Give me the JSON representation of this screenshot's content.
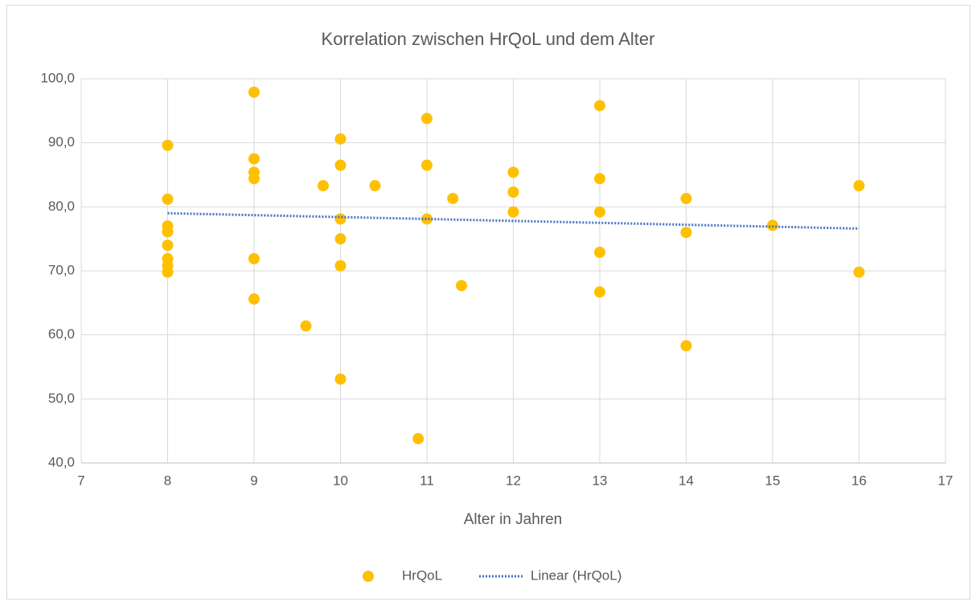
{
  "chart_data": {
    "type": "scatter",
    "title": "Korrelation zwischen HrQoL und dem Alter",
    "xlabel": "Alter in Jahren",
    "xlim": [
      7,
      17
    ],
    "xticks": [
      7,
      8,
      9,
      10,
      11,
      12,
      13,
      14,
      15,
      16,
      17
    ],
    "ylim": [
      40,
      100
    ],
    "yticks": [
      {
        "value": 40,
        "label": "40,0"
      },
      {
        "value": 50,
        "label": "50,0"
      },
      {
        "value": 60,
        "label": "60,0"
      },
      {
        "value": 70,
        "label": "70,0"
      },
      {
        "value": 80,
        "label": "80,0"
      },
      {
        "value": 90,
        "label": "90,0"
      },
      {
        "value": 100,
        "label": "100,0"
      }
    ],
    "grid": true,
    "legend": "bottom",
    "series": [
      {
        "name": "HrQoL",
        "color": "#ffc000",
        "type": "scatter",
        "x": [
          8,
          8,
          8,
          8,
          8,
          8,
          8,
          8,
          9,
          9,
          9,
          9,
          9,
          9,
          9.6,
          9.8,
          10,
          10,
          10,
          10,
          10,
          10,
          10.4,
          10.9,
          11,
          11,
          11,
          11.3,
          11.4,
          12,
          12,
          12,
          13,
          13,
          13,
          13,
          13,
          14,
          14,
          14,
          15,
          16,
          16
        ],
        "values": [
          89.6,
          81.2,
          77.0,
          76.1,
          74.0,
          71.9,
          70.8,
          69.8,
          97.9,
          87.5,
          85.4,
          84.4,
          71.9,
          65.6,
          61.4,
          83.3,
          90.6,
          86.5,
          78.1,
          75.0,
          70.8,
          53.1,
          83.3,
          43.8,
          93.8,
          86.5,
          78.1,
          81.3,
          67.7,
          85.4,
          82.3,
          79.2,
          95.8,
          84.4,
          79.2,
          72.9,
          66.7,
          81.3,
          76.0,
          58.3,
          77.1,
          83.3,
          69.8
        ]
      },
      {
        "name": "Linear (HrQoL)",
        "color": "#4472c4",
        "type": "line",
        "dotted": true,
        "x": [
          8,
          16
        ],
        "values": [
          79.0,
          76.6
        ]
      }
    ]
  }
}
